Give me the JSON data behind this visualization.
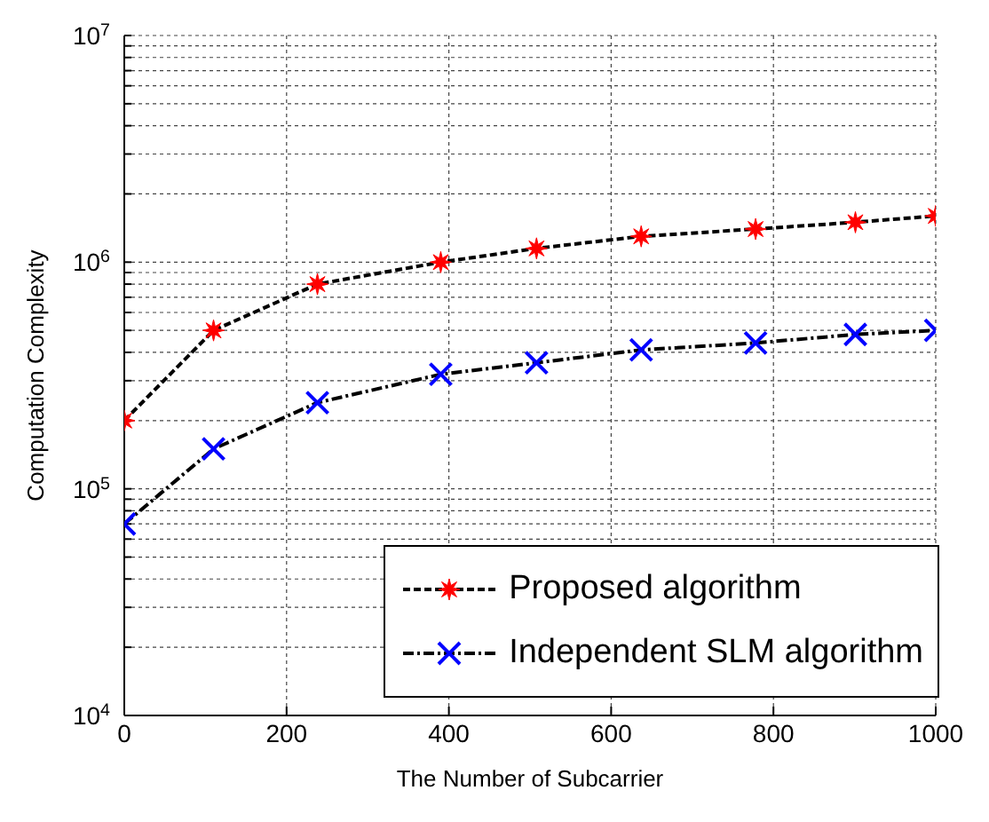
{
  "chart_data": {
    "type": "line",
    "xlabel": "The Number of Subcarrier",
    "ylabel": "Computation Complexity",
    "x": [
      0,
      110,
      238,
      390,
      508,
      637,
      778,
      901,
      1000
    ],
    "series": [
      {
        "name": "Proposed algorithm",
        "color": "#ff0000",
        "marker": "star",
        "line_style": "dashed",
        "values": [
          200000,
          500000,
          800000,
          1000000,
          1150000,
          1300000,
          1400000,
          1500000,
          1600000
        ]
      },
      {
        "name": "Independent SLM algorithm",
        "color": "#0000ff",
        "marker": "cross",
        "line_style": "dashed",
        "values": [
          70000,
          150000,
          240000,
          320000,
          360000,
          410000,
          440000,
          480000,
          500000
        ]
      }
    ],
    "log": true,
    "xlim": [
      0,
      1000
    ],
    "xticks": [
      0,
      200,
      400,
      600,
      800,
      1000
    ],
    "ylim": [
      10000,
      10000000
    ],
    "yticks": [
      {
        "value": 10000,
        "label": "10$^{4}$"
      },
      {
        "value": 20000,
        "label": null
      },
      {
        "value": 30000,
        "label": null
      },
      {
        "value": 40000,
        "label": null
      },
      {
        "value": 50000,
        "label": null
      },
      {
        "value": 60000,
        "label": null
      },
      {
        "value": 70000,
        "label": null
      },
      {
        "value": 80000,
        "label": null
      },
      {
        "value": 90000,
        "label": null
      },
      {
        "value": 100000,
        "label": "10$^{5}$"
      },
      {
        "value": 200000,
        "label": null
      },
      {
        "value": 300000,
        "label": null
      },
      {
        "value": 400000,
        "label": null
      },
      {
        "value": 500000,
        "label": null
      },
      {
        "value": 600000,
        "label": null
      },
      {
        "value": 700000,
        "label": null
      },
      {
        "value": 800000,
        "label": null
      },
      {
        "value": 900000,
        "label": null
      },
      {
        "value": 1000000,
        "label": "10$^{6}$"
      },
      {
        "value": 2000000,
        "label": null
      },
      {
        "value": 3000000,
        "label": null
      },
      {
        "value": 4000000,
        "label": null
      },
      {
        "value": 5000000,
        "label": null
      },
      {
        "value": 6000000,
        "label": null
      },
      {
        "value": 7000000,
        "label": null
      },
      {
        "value": 8000000,
        "label": null
      },
      {
        "value": 9000000,
        "label": null
      },
      {
        "value": 10000000,
        "label": "10$^{7}$"
      }
    ],
    "grid": true,
    "legend": "bottom right"
  }
}
